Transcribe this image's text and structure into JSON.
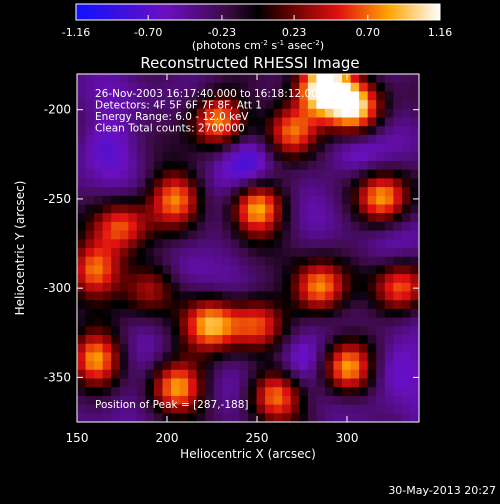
{
  "chart_data": {
    "type": "heatmap",
    "title": "Reconstructed RHESSI Image",
    "xlabel": "Heliocentric X (arcsec)",
    "ylabel": "Heliocentric Y (arcsec)",
    "xlim": [
      150,
      340
    ],
    "ylim": [
      -375,
      -180
    ],
    "x_ticks": [
      150,
      200,
      250,
      300
    ],
    "y_ticks": [
      -200,
      -250,
      -300,
      -350
    ],
    "colorbar": {
      "min": -1.16,
      "max": 1.16,
      "ticks": [
        "-1.16",
        "-0.70",
        "-0.23",
        "0.23",
        "0.70",
        "1.16"
      ],
      "label_html": "(photons cm<tspan dy=\"-4\" font-size=\"7\">-2</tspan><tspan dy=\"4\"> s</tspan><tspan dy=\"-4\" font-size=\"7\">-1</tspan><tspan dy=\"4\"> asec</tspan><tspan dy=\"-4\" font-size=\"7\">-2</tspan><tspan dy=\"4\">)</tspan>"
    },
    "colorbar_label_plain": "(photons cm-2 s-1 asec-2)",
    "annotations": [
      "26-Nov-2003 16:17:40.000 to 16:18:12.000",
      "Detectors: 4F 5F 6F 7F 8F, Att 1",
      "Energy Range: 6.0 - 12.0 keV",
      "Clean     Total counts: 2700000"
    ],
    "peak_label": "Position of Peak = [287,-188]",
    "peak": [
      287,
      -188
    ],
    "bright_sources": [
      {
        "x": 228,
        "y": -206,
        "v": 0.9
      },
      {
        "x": 270,
        "y": -212,
        "v": 0.85
      },
      {
        "x": 305,
        "y": -200,
        "v": 1.0
      },
      {
        "x": 287,
        "y": -188,
        "v": 1.16
      },
      {
        "x": 250,
        "y": -255,
        "v": 0.9
      },
      {
        "x": 205,
        "y": -250,
        "v": 0.75
      },
      {
        "x": 175,
        "y": -265,
        "v": 0.6
      },
      {
        "x": 160,
        "y": -290,
        "v": 0.7
      },
      {
        "x": 190,
        "y": -300,
        "v": 0.5
      },
      {
        "x": 225,
        "y": -320,
        "v": 0.8
      },
      {
        "x": 285,
        "y": -300,
        "v": 0.9
      },
      {
        "x": 320,
        "y": -250,
        "v": 0.85
      },
      {
        "x": 330,
        "y": -300,
        "v": 0.7
      },
      {
        "x": 250,
        "y": -320,
        "v": 0.55
      },
      {
        "x": 160,
        "y": -340,
        "v": 0.85
      },
      {
        "x": 205,
        "y": -355,
        "v": 0.9
      },
      {
        "x": 260,
        "y": -360,
        "v": 0.8
      },
      {
        "x": 300,
        "y": -345,
        "v": 0.9
      }
    ],
    "dark_sources": [
      {
        "x": 245,
        "y": -230,
        "v": -1.1
      },
      {
        "x": 305,
        "y": -225,
        "v": -0.8
      },
      {
        "x": 165,
        "y": -220,
        "v": -0.7
      },
      {
        "x": 320,
        "y": -280,
        "v": -0.6
      },
      {
        "x": 210,
        "y": -285,
        "v": -0.6
      },
      {
        "x": 185,
        "y": -330,
        "v": -0.5
      },
      {
        "x": 275,
        "y": -340,
        "v": -0.9
      },
      {
        "x": 325,
        "y": -345,
        "v": -0.8
      },
      {
        "x": 175,
        "y": -370,
        "v": -0.6
      },
      {
        "x": 230,
        "y": -365,
        "v": -0.5
      }
    ]
  },
  "footer_date": "30-May-2013 20:27"
}
